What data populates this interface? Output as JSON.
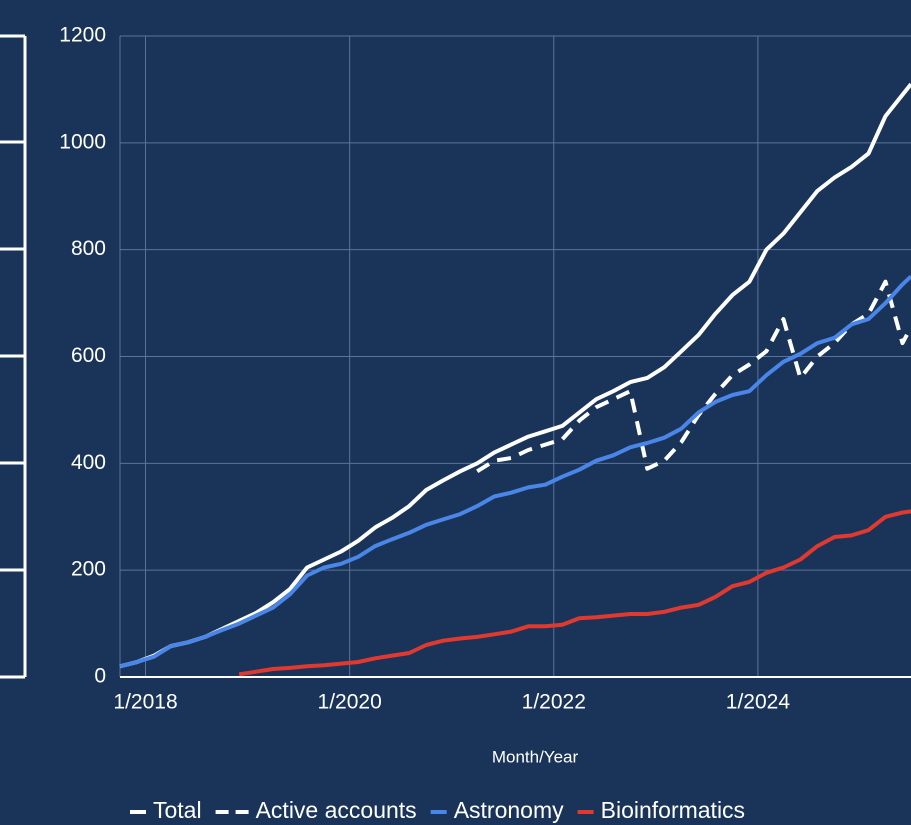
{
  "chart_data": {
    "type": "line",
    "x_label": "Month/Year",
    "x": [
      "10/2017",
      "12/2017",
      "2/2018",
      "4/2018",
      "6/2018",
      "8/2018",
      "10/2018",
      "12/2018",
      "2/2019",
      "4/2019",
      "6/2019",
      "8/2019",
      "10/2019",
      "12/2019",
      "2/2020",
      "4/2020",
      "6/2020",
      "8/2020",
      "10/2020",
      "12/2020",
      "2/2021",
      "4/2021",
      "6/2021",
      "8/2021",
      "10/2021",
      "12/2021",
      "2/2022",
      "4/2022",
      "6/2022",
      "8/2022",
      "10/2022",
      "12/2022",
      "2/2023",
      "4/2023",
      "6/2023",
      "8/2023",
      "10/2023",
      "12/2023",
      "2/2024",
      "4/2024",
      "6/2024",
      "8/2024",
      "10/2024",
      "12/2024",
      "2/2025",
      "4/2025",
      "6/2025",
      "7/2025"
    ],
    "series": [
      {
        "name": "Total",
        "color": "#ffffff",
        "dash": false,
        "values": [
          20,
          28,
          40,
          58,
          65,
          75,
          90,
          105,
          120,
          140,
          165,
          205,
          220,
          235,
          255,
          280,
          298,
          320,
          350,
          368,
          385,
          400,
          420,
          435,
          450,
          460,
          470,
          495,
          520,
          535,
          552,
          560,
          580,
          610,
          640,
          680,
          715,
          740,
          800,
          830,
          870,
          910,
          935,
          955,
          980,
          1050,
          1090,
          1110
        ]
      },
      {
        "name": "Active accounts",
        "color": "#ffffff",
        "dash": true,
        "values": [
          null,
          null,
          null,
          null,
          null,
          null,
          null,
          null,
          null,
          null,
          null,
          null,
          null,
          null,
          null,
          null,
          null,
          null,
          null,
          null,
          null,
          385,
          405,
          410,
          425,
          435,
          445,
          480,
          505,
          520,
          535,
          390,
          405,
          440,
          490,
          530,
          565,
          585,
          610,
          670,
          560,
          600,
          625,
          660,
          680,
          740,
          625,
          655
        ]
      },
      {
        "name": "Astronomy",
        "color": "#4a86e8",
        "dash": false,
        "values": [
          20,
          28,
          38,
          58,
          65,
          75,
          88,
          100,
          115,
          130,
          155,
          190,
          205,
          212,
          225,
          245,
          258,
          270,
          285,
          295,
          305,
          320,
          338,
          345,
          355,
          360,
          375,
          388,
          405,
          415,
          430,
          438,
          448,
          465,
          495,
          515,
          528,
          535,
          565,
          590,
          605,
          625,
          635,
          660,
          670,
          700,
          735,
          750
        ]
      },
      {
        "name": "Bioinformatics",
        "color": "#e0392f",
        "dash": false,
        "values": [
          null,
          null,
          null,
          null,
          null,
          null,
          null,
          5,
          10,
          15,
          17,
          20,
          22,
          25,
          28,
          35,
          40,
          45,
          60,
          68,
          72,
          75,
          80,
          85,
          95,
          95,
          98,
          110,
          112,
          115,
          118,
          118,
          122,
          130,
          135,
          150,
          170,
          178,
          195,
          205,
          220,
          245,
          262,
          265,
          275,
          300,
          308,
          310
        ]
      }
    ],
    "xlim": [
      "10/2017",
      "7/2025"
    ],
    "xticks": [
      "1/2018",
      "1/2020",
      "1/2022",
      "1/2024"
    ],
    "ylim": [
      0,
      1200
    ],
    "yticks": [
      0,
      200,
      400,
      600,
      800,
      1000,
      1200
    ],
    "grid": true,
    "legend": "bottom"
  }
}
